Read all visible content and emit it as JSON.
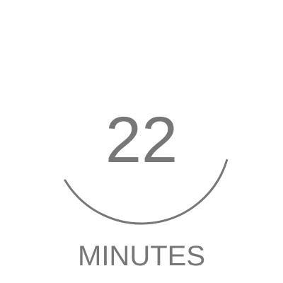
{
  "timer": {
    "value": "22",
    "unit": "MINUTES",
    "progress_fraction": 0.367,
    "color": "#777777"
  }
}
